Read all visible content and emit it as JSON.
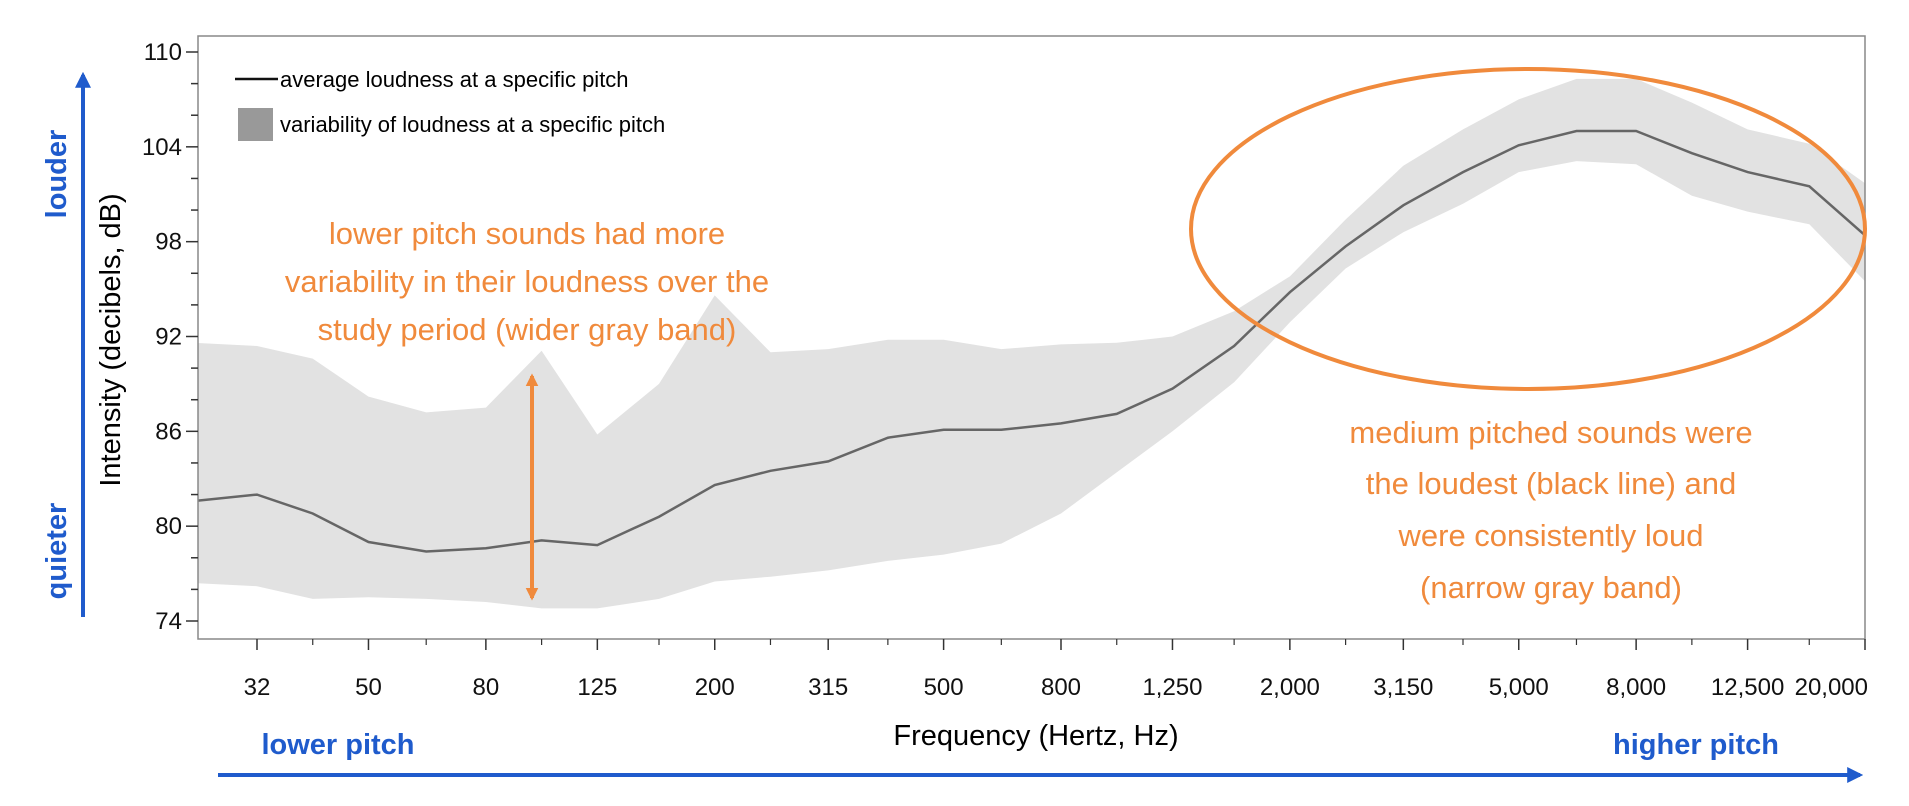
{
  "chart_data": {
    "type": "area",
    "xlabel": "Frequency (Hertz, Hz)",
    "ylabel": "Intensity  (decibels, dB)",
    "ylim": [
      74,
      110
    ],
    "y_ticks": [
      74,
      80,
      86,
      92,
      98,
      104,
      110
    ],
    "y_tick_labels": [
      "74",
      "80",
      "86",
      "92",
      "98",
      "104",
      "110"
    ],
    "x_ticks": [
      32,
      50,
      80,
      125,
      200,
      315,
      500,
      800,
      1250,
      2000,
      3150,
      5000,
      8000,
      12500,
      20000
    ],
    "x_tick_labels": [
      "32",
      "50",
      "80",
      "125",
      "200",
      "315",
      "500",
      "800",
      "1,250",
      "2,000",
      "3,150",
      "5,000",
      "8,000",
      "12,500",
      "20,000"
    ],
    "x": [
      25,
      32,
      40,
      50,
      63,
      80,
      100,
      125,
      160,
      200,
      250,
      315,
      400,
      500,
      630,
      800,
      1000,
      1250,
      1600,
      2000,
      2500,
      3150,
      4000,
      5000,
      6300,
      8000,
      10000,
      12500,
      16000,
      20000
    ],
    "series": [
      {
        "name": "average loudness at a specific pitch",
        "values": [
          81.6,
          82.0,
          80.8,
          79.0,
          78.4,
          78.6,
          79.1,
          78.8,
          80.6,
          82.6,
          83.5,
          84.1,
          85.6,
          86.1,
          86.1,
          86.5,
          87.1,
          88.7,
          91.4,
          94.8,
          97.7,
          100.3,
          102.4,
          104.1,
          105.0,
          105.0,
          103.6,
          102.4,
          101.5,
          98.4
        ]
      },
      {
        "name": "variability of loudness at a specific pitch",
        "upper": [
          91.6,
          91.4,
          90.6,
          88.2,
          87.2,
          87.5,
          91.1,
          85.8,
          89.0,
          94.6,
          91.0,
          91.2,
          91.8,
          91.8,
          91.2,
          91.5,
          91.6,
          92.0,
          93.6,
          95.8,
          99.4,
          102.8,
          105.1,
          107.0,
          108.3,
          108.3,
          106.8,
          105.1,
          104.2,
          101.7
        ],
        "lower": [
          76.4,
          76.2,
          75.4,
          75.5,
          75.4,
          75.2,
          74.8,
          74.8,
          75.4,
          76.5,
          76.8,
          77.2,
          77.8,
          78.2,
          78.9,
          80.8,
          83.4,
          86.0,
          89.1,
          92.9,
          96.3,
          98.6,
          100.4,
          102.4,
          103.1,
          102.9,
          100.9,
          99.9,
          99.1,
          95.5
        ]
      }
    ],
    "legend": [
      "average loudness at a specific pitch",
      "variability of loudness at a specific pitch"
    ],
    "legend_position": "top-left",
    "grid": false,
    "annotations": [
      {
        "id": "low",
        "lines": [
          "lower pitch sounds had more",
          "variability in their loudness over the",
          "study period (wider gray band)"
        ]
      },
      {
        "id": "mid",
        "lines": [
          "medium pitched sounds were",
          "the loudest (black line) and",
          "were consistently loud",
          "(narrow gray band)"
        ]
      }
    ],
    "side_labels": {
      "louder": "louder",
      "quieter": "quieter",
      "lower_pitch": "lower pitch",
      "higher_pitch": "higher pitch"
    }
  },
  "colors": {
    "line": "#666666",
    "band": "#e2e2e2",
    "legend_swatch": "#999999",
    "annotation": "#f08a3c",
    "pitch_arrows": "#1f5bcc",
    "axis": "#333333"
  }
}
